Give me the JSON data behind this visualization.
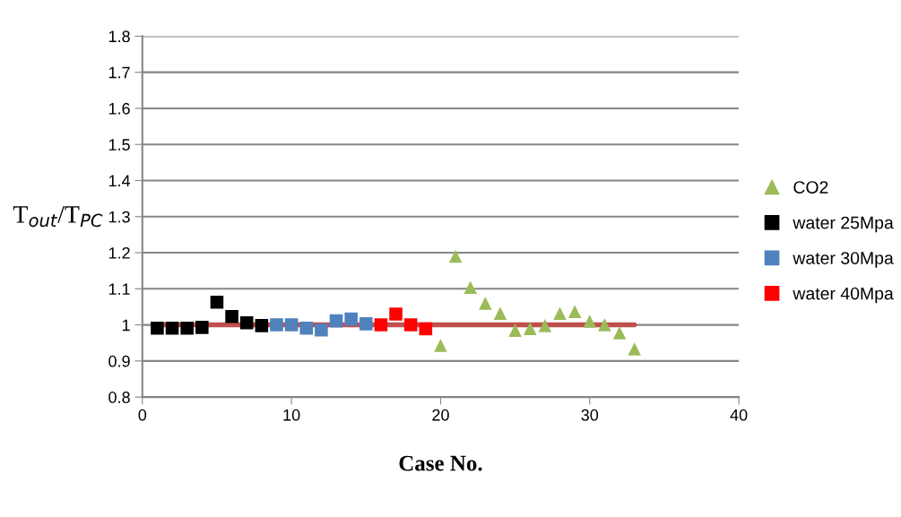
{
  "chart_data": {
    "type": "scatter",
    "xlabel": "Case No.",
    "ylabel": "T$_{out}$/T$_{PC}$",
    "xlim": [
      0,
      40
    ],
    "xticks": [
      0,
      10,
      20,
      30,
      40
    ],
    "ylim": [
      0.8,
      1.8
    ],
    "yticks": [
      0.8,
      0.9,
      {
        "value": 1.0,
        "label": "1"
      },
      1.1,
      1.2,
      1.3,
      1.4,
      1.5,
      1.6,
      1.7,
      1.8
    ],
    "grid": "y",
    "legend": "right",
    "series": [
      {
        "type": "line",
        "color": "#c0504d",
        "marker": "none",
        "line_style": "solid",
        "x": [
          1,
          33
        ],
        "values": [
          1.0,
          1.0
        ]
      },
      {
        "name": "CO2",
        "color": "#9bbb59",
        "marker": "triangle",
        "x": [
          20,
          21,
          22,
          23,
          24,
          25,
          26,
          27,
          28,
          29,
          30,
          31,
          32,
          33
        ],
        "values": [
          0.943,
          1.19,
          1.104,
          1.06,
          1.032,
          0.985,
          0.99,
          0.998,
          1.032,
          1.037,
          1.01,
          1.0,
          0.978,
          0.933
        ]
      },
      {
        "name": "water 25Mpa",
        "color": "#000000",
        "marker": "square",
        "x": [
          1,
          2,
          3,
          4,
          5,
          6,
          7,
          8
        ],
        "values": [
          0.991,
          0.991,
          0.991,
          0.993,
          1.063,
          1.023,
          1.006,
          0.998
        ]
      },
      {
        "name": "water 30Mpa",
        "color": "#4f81bd",
        "marker": "square",
        "x": [
          9,
          10,
          11,
          12,
          13,
          14,
          15
        ],
        "values": [
          1.0,
          1.0,
          0.991,
          0.986,
          1.011,
          1.016,
          1.003
        ]
      },
      {
        "name": "water 40Mpa",
        "color": "#ff0000",
        "marker": "square",
        "x": [
          16,
          17,
          18,
          19
        ],
        "values": [
          1.0,
          1.03,
          1.0,
          0.989
        ]
      }
    ]
  }
}
